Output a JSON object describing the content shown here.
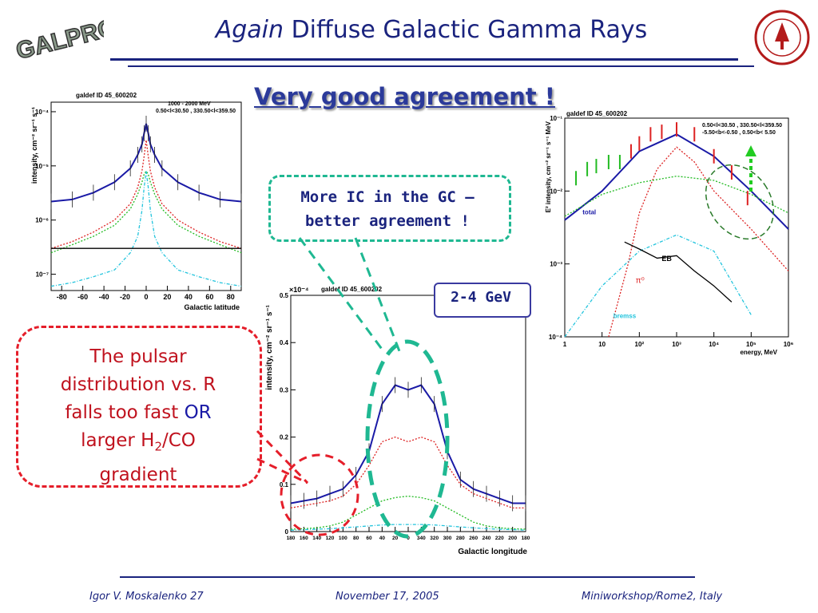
{
  "slide": {
    "title_italic": "Again",
    "title_rest": " Diffuse Galactic Gamma Rays",
    "subtitle": "Very good agreement !",
    "logo_text": "GALPROP"
  },
  "callouts": {
    "green_line1": "More IC in the GC –",
    "green_line2": "better agreement !",
    "energy_box": "2-4 GeV",
    "red_line1": "The pulsar",
    "red_line2": "distribution vs. R",
    "red_line3a": "falls too fast ",
    "red_line3b": "OR",
    "red_line4a": "larger H",
    "red_line4sub": "2",
    "red_line4b": "/CO",
    "red_line5": "gradient"
  },
  "footer": {
    "author": "Igor V. Moskalenko  27",
    "date": "November 17, 2005",
    "venue": "Miniworkshop/Rome2, Italy"
  },
  "colors": {
    "title": "#1a237e",
    "green_dashed": "#1fb892",
    "red_dashed": "#e51e2a"
  },
  "chart_data": [
    {
      "type": "line",
      "header": "galdef ID 45_600202",
      "legend_line1": "1000 - 2000 MeV",
      "legend_line2": "0.50<l<30.50 , 330.50<l<359.50",
      "xlabel": "Galactic latitude",
      "ylabel": "intensity, cm⁻² sr⁻¹ s⁻¹",
      "x_ticks": [
        "-80",
        "-60",
        "-40",
        "-20",
        "0",
        "20",
        "40",
        "60",
        "80"
      ],
      "y_ticks": [
        "10⁻⁷",
        "10⁻⁶",
        "10⁻⁵",
        "10⁻⁴"
      ],
      "log_y": true,
      "xlim": [
        -90,
        90
      ],
      "ylim": [
        5e-08,
        0.00015
      ],
      "series": [
        {
          "color": "#1a1aa6",
          "x": [
            -90,
            -70,
            -50,
            -30,
            -15,
            -8,
            -4,
            -2,
            0,
            2,
            4,
            8,
            15,
            30,
            50,
            70,
            90
          ],
          "y": [
            2.2e-06,
            2.4e-06,
            3.2e-06,
            5e-06,
            9e-06,
            1.6e-05,
            2.5e-05,
            4e-05,
            6e-05,
            4e-05,
            2.5e-05,
            1.6e-05,
            9e-06,
            5e-06,
            3.2e-06,
            2.4e-06,
            2.2e-06
          ]
        },
        {
          "color": "#dd2222",
          "x": [
            -90,
            -70,
            -50,
            -30,
            -15,
            -8,
            -4,
            -2,
            0,
            2,
            4,
            8,
            15,
            30,
            50,
            70,
            90
          ],
          "y": [
            3e-07,
            4e-07,
            6e-07,
            1e-06,
            2e-06,
            4e-06,
            8e-06,
            1.5e-05,
            3e-05,
            1.5e-05,
            8e-06,
            4e-06,
            2e-06,
            1e-06,
            6e-07,
            4e-07,
            3e-07
          ]
        },
        {
          "color": "#22bb22",
          "x": [
            -90,
            -70,
            -50,
            -30,
            -15,
            -8,
            -4,
            -2,
            0,
            2,
            4,
            8,
            15,
            30,
            50,
            70,
            90
          ],
          "y": [
            2.5e-07,
            3.5e-07,
            5e-07,
            8e-07,
            1.6e-06,
            3e-06,
            5e-06,
            7e-06,
            8e-06,
            7e-06,
            5e-06,
            3e-06,
            1.6e-06,
            8e-07,
            5e-07,
            3.5e-07,
            2.5e-07
          ]
        },
        {
          "color": "#22c4dd",
          "x": [
            -90,
            -70,
            -50,
            -30,
            -15,
            -8,
            -4,
            -2,
            0,
            2,
            4,
            8,
            15,
            30,
            50,
            70,
            90
          ],
          "y": [
            6e-08,
            7e-08,
            9e-08,
            1.2e-07,
            2.5e-07,
            5e-07,
            1.5e-06,
            4e-06,
            8e-06,
            4e-06,
            1.5e-06,
            5e-07,
            2.5e-07,
            1.2e-07,
            9e-08,
            7e-08,
            6e-08
          ]
        },
        {
          "color": "#000000",
          "x": [
            -90,
            90
          ],
          "y": [
            3e-07,
            3e-07
          ]
        }
      ]
    },
    {
      "type": "line",
      "header": "galdef ID 45_600202",
      "y_exponent": "×10⁻⁴",
      "xlabel": "Galactic longitude",
      "ylabel": "intensity, cm⁻² sr⁻¹ s⁻¹",
      "x_ticks": [
        "180",
        "160",
        "140",
        "120",
        "100",
        "80",
        "60",
        "40",
        "20",
        "0",
        "340",
        "320",
        "300",
        "280",
        "260",
        "240",
        "220",
        "200",
        "180"
      ],
      "y_ticks": [
        "0",
        "0.1",
        "0.2",
        "0.3",
        "0.4",
        "0.5"
      ],
      "ylim": [
        0,
        0.5
      ],
      "series": [
        {
          "color": "#1a1aa6",
          "x": [
            0,
            1,
            2,
            3,
            4,
            5,
            6,
            7,
            8,
            9,
            10,
            11,
            12,
            13,
            14,
            15,
            16,
            17,
            18
          ],
          "y": [
            0.06,
            0.065,
            0.07,
            0.08,
            0.09,
            0.12,
            0.17,
            0.27,
            0.31,
            0.3,
            0.31,
            0.27,
            0.17,
            0.11,
            0.09,
            0.08,
            0.07,
            0.06,
            0.06
          ]
        },
        {
          "color": "#dd2222",
          "x": [
            0,
            1,
            2,
            3,
            4,
            5,
            6,
            7,
            8,
            9,
            10,
            11,
            12,
            13,
            14,
            15,
            16,
            17,
            18
          ],
          "y": [
            0.05,
            0.055,
            0.06,
            0.065,
            0.075,
            0.1,
            0.14,
            0.19,
            0.2,
            0.19,
            0.2,
            0.19,
            0.14,
            0.1,
            0.08,
            0.07,
            0.06,
            0.05,
            0.05
          ]
        },
        {
          "color": "#22bb22",
          "x": [
            0,
            1,
            2,
            3,
            4,
            5,
            6,
            7,
            8,
            9,
            10,
            11,
            12,
            13,
            14,
            15,
            16,
            17,
            18
          ],
          "y": [
            0.005,
            0.006,
            0.008,
            0.012,
            0.02,
            0.035,
            0.05,
            0.065,
            0.072,
            0.075,
            0.072,
            0.065,
            0.05,
            0.035,
            0.02,
            0.012,
            0.008,
            0.006,
            0.005
          ]
        },
        {
          "color": "#22c4dd",
          "x": [
            0,
            1,
            2,
            3,
            4,
            5,
            6,
            7,
            8,
            9,
            10,
            11,
            12,
            13,
            14,
            15,
            16,
            17,
            18
          ],
          "y": [
            0.003,
            0.004,
            0.005,
            0.006,
            0.008,
            0.01,
            0.012,
            0.014,
            0.015,
            0.015,
            0.015,
            0.014,
            0.012,
            0.01,
            0.008,
            0.006,
            0.005,
            0.004,
            0.003
          ]
        }
      ]
    },
    {
      "type": "line",
      "header": "galdef ID 45_600202",
      "legend_line1": "0.50<l<30.50 , 330.50<l<359.50",
      "legend_line2": "-5.50<b<-0.50 ,  0.50<b< 5.50",
      "xlabel": "energy, MeV",
      "ylabel": "E² intensity, cm⁻² sr⁻¹ s⁻¹ MeV",
      "x_ticks": [
        "1",
        "10",
        "10²",
        "10³",
        "10⁴",
        "10⁵",
        "10⁶"
      ],
      "y_ticks": [
        "10⁻⁴",
        "10⁻³",
        "10⁻²",
        "10⁻¹"
      ],
      "log_x": true,
      "log_y": true,
      "xlim": [
        1,
        1000000
      ],
      "ylim": [
        0.0001,
        0.1
      ],
      "labels": {
        "total": "total",
        "eb": "EB",
        "pi0": "π⁰",
        "brems": "bremss"
      },
      "series": [
        {
          "color": "#1a1aa6",
          "x": [
            1,
            10,
            100,
            1000,
            10000,
            100000,
            1000000
          ],
          "y": [
            0.004,
            0.01,
            0.035,
            0.06,
            0.03,
            0.01,
            0.003
          ]
        },
        {
          "color": "#dd2222",
          "x": [
            15,
            50,
            100,
            300,
            1000,
            3000,
            10000,
            100000,
            1000000
          ],
          "y": [
            0.0001,
            0.001,
            0.005,
            0.02,
            0.04,
            0.025,
            0.01,
            0.003,
            0.0008
          ]
        },
        {
          "color": "#22bb22",
          "x": [
            1,
            10,
            100,
            1000,
            10000,
            100000,
            1000000
          ],
          "y": [
            0.0045,
            0.009,
            0.013,
            0.016,
            0.014,
            0.009,
            0.005
          ]
        },
        {
          "color": "#22c4dd",
          "x": [
            1,
            10,
            100,
            1000,
            10000,
            100000
          ],
          "y": [
            0.0001,
            0.0005,
            0.0015,
            0.0025,
            0.0015,
            0.0002
          ]
        },
        {
          "color": "#000000",
          "x": [
            40,
            100,
            300,
            1000,
            3000,
            10000,
            30000
          ],
          "y": [
            0.002,
            0.0016,
            0.0012,
            0.0013,
            0.0008,
            0.0005,
            0.0003
          ]
        }
      ]
    }
  ]
}
